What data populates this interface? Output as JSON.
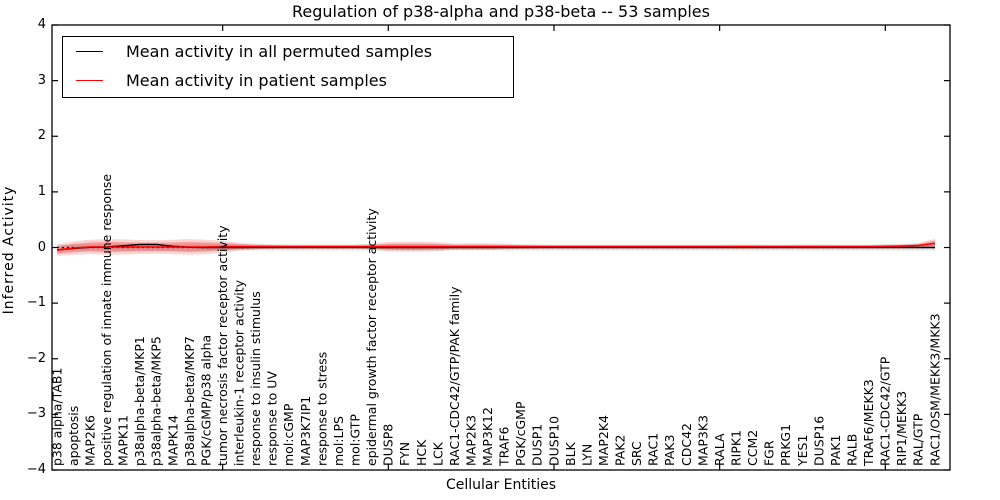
{
  "chart_data": {
    "type": "line",
    "title": "Regulation of p38-alpha and p38-beta -- 53 samples",
    "xlabel": "Cellular Entities",
    "ylabel": "Inferred Activity",
    "ylim": [
      -4,
      4
    ],
    "yticks": [
      4,
      3,
      2,
      1,
      0,
      -1,
      -2,
      -3,
      -4
    ],
    "ytick_labels": [
      "4",
      "3",
      "2",
      "1",
      "0",
      "−1",
      "−2",
      "−3",
      "−4"
    ],
    "xtick_indices": [
      10,
      20,
      30,
      40,
      50
    ],
    "grid": false,
    "legend_position": "upper left",
    "categories": [
      "p38 alpha/TAB1",
      "apoptosis",
      "MAP2K6",
      "positive regulation of innate immune response",
      "MAPK11",
      "p38alpha-beta/MKP1",
      "p38alpha-beta/MKP5",
      "MAPK14",
      "p38alpha-beta/MKP7",
      "PGK/cGMP/p38 alpha",
      "tumor necrosis factor receptor activity",
      "interleukin-1 receptor activity",
      "response to insulin stimulus",
      "response to UV",
      "mol:cGMP",
      "MAP3K7IP1",
      "response to stress",
      "mol:LPS",
      "mol:GTP",
      "epidermal growth factor receptor activity",
      "DUSP8",
      "FYN",
      "HCK",
      "LCK",
      "RAC1-CDC42/GTP/PAK family",
      "MAP2K3",
      "MAP3K12",
      "TRAF6",
      "PGK/cGMP",
      "DUSP1",
      "DUSP10",
      "BLK",
      "LYN",
      "MAP2K4",
      "PAK2",
      "SRC",
      "RAC1",
      "PAK3",
      "CDC42",
      "MAP3K3",
      "RALA",
      "RIPK1",
      "CCM2",
      "FGR",
      "PRKG1",
      "YES1",
      "DUSP16",
      "PAK1",
      "RALB",
      "TRAF6/MEKK3",
      "RAC1-CDC42/GTP",
      "RIP1/MEKK3",
      "RAL/GTP",
      "RAC1/OSM/MEKK3/MKK3"
    ],
    "series": [
      {
        "name": "Mean activity in all permuted samples",
        "color": "#000000",
        "values": [
          -0.045,
          -0.015,
          0.005,
          0.01,
          0.03,
          0.055,
          0.055,
          0.02,
          0.005,
          0,
          0,
          0,
          0,
          0,
          0,
          0,
          0,
          0,
          0,
          0,
          0,
          0,
          0,
          0,
          0,
          0,
          0,
          0,
          0,
          0,
          0,
          0,
          0,
          0,
          0,
          0,
          0,
          0,
          0,
          0,
          0,
          0,
          0,
          0,
          0,
          0,
          0,
          0,
          0,
          0,
          0,
          0,
          0,
          0
        ]
      },
      {
        "name": "Mean activity in patient samples",
        "color": "#ff0000",
        "values": [
          -0.05,
          -0.01,
          0.01,
          0.01,
          0.01,
          0.01,
          0.01,
          0.01,
          0.01,
          0.01,
          0.015,
          0.015,
          0.015,
          0.015,
          0.015,
          0.015,
          0.015,
          0.015,
          0.015,
          0.015,
          0.015,
          0.015,
          0.015,
          0.015,
          0.015,
          0.015,
          0.015,
          0.015,
          0.015,
          0.015,
          0.015,
          0.015,
          0.015,
          0.015,
          0.015,
          0.015,
          0.015,
          0.015,
          0.015,
          0.015,
          0.015,
          0.015,
          0.015,
          0.015,
          0.015,
          0.015,
          0.015,
          0.015,
          0.015,
          0.015,
          0.02,
          0.025,
          0.035,
          0.075
        ]
      }
    ],
    "bands": [
      {
        "name": "permuted-std-band",
        "color": "#e4e4e4",
        "center_on": "zero",
        "half_widths": [
          0.055,
          0.055,
          0.055,
          0.055,
          0.055,
          0.055,
          0.055,
          0.055,
          0.055,
          0.055,
          0.055,
          0.055,
          0.055,
          0.055,
          0.055,
          0.055,
          0.055,
          0.055,
          0.055,
          0.055,
          0.055,
          0.055,
          0.055,
          0.055,
          0.055,
          0.055,
          0.055,
          0.055,
          0.055,
          0.055,
          0.055,
          0.055,
          0.055,
          0.055,
          0.055,
          0.055,
          0.055,
          0.055,
          0.055,
          0.055,
          0.055,
          0.055,
          0.055,
          0.055,
          0.055,
          0.055,
          0.055,
          0.055,
          0.055,
          0.055,
          0.055,
          0.055,
          0.055,
          0.055
        ]
      },
      {
        "name": "patient-std-band-outer",
        "color": "rgba(235,50,50,0.21)",
        "center_on": "patient",
        "half_widths": [
          0.1,
          0.12,
          0.13,
          0.14,
          0.135,
          0.125,
          0.12,
          0.13,
          0.14,
          0.13,
          0.105,
          0.07,
          0.05,
          0.04,
          0.035,
          0.035,
          0.035,
          0.035,
          0.035,
          0.05,
          0.085,
          0.09,
          0.09,
          0.08,
          0.055,
          0.06,
          0.06,
          0.05,
          0.04,
          0.035,
          0.03,
          0.03,
          0.03,
          0.03,
          0.03,
          0.03,
          0.03,
          0.03,
          0.03,
          0.03,
          0.03,
          0.035,
          0.035,
          0.03,
          0.03,
          0.035,
          0.035,
          0.03,
          0.03,
          0.03,
          0.035,
          0.035,
          0.045,
          0.08
        ]
      },
      {
        "name": "patient-std-band-inner",
        "color": "rgba(230,40,40,0.33)",
        "center_on": "patient",
        "half_widths": [
          0.06,
          0.075,
          0.08,
          0.09,
          0.085,
          0.078,
          0.075,
          0.08,
          0.09,
          0.08,
          0.065,
          0.045,
          0.03,
          0.025,
          0.02,
          0.02,
          0.02,
          0.02,
          0.02,
          0.03,
          0.05,
          0.055,
          0.055,
          0.05,
          0.033,
          0.035,
          0.035,
          0.03,
          0.025,
          0.02,
          0.018,
          0.018,
          0.018,
          0.018,
          0.018,
          0.018,
          0.018,
          0.018,
          0.018,
          0.018,
          0.018,
          0.02,
          0.02,
          0.018,
          0.018,
          0.02,
          0.02,
          0.018,
          0.018,
          0.018,
          0.02,
          0.02,
          0.028,
          0.05
        ]
      }
    ],
    "zero_line": {
      "y": 0,
      "style": "dotted",
      "color": "#000000"
    }
  },
  "legend": {
    "items": [
      {
        "label": "Mean activity in all permuted samples",
        "color": "#000000"
      },
      {
        "label": "Mean activity in patient samples",
        "color": "#ff0000"
      }
    ]
  }
}
